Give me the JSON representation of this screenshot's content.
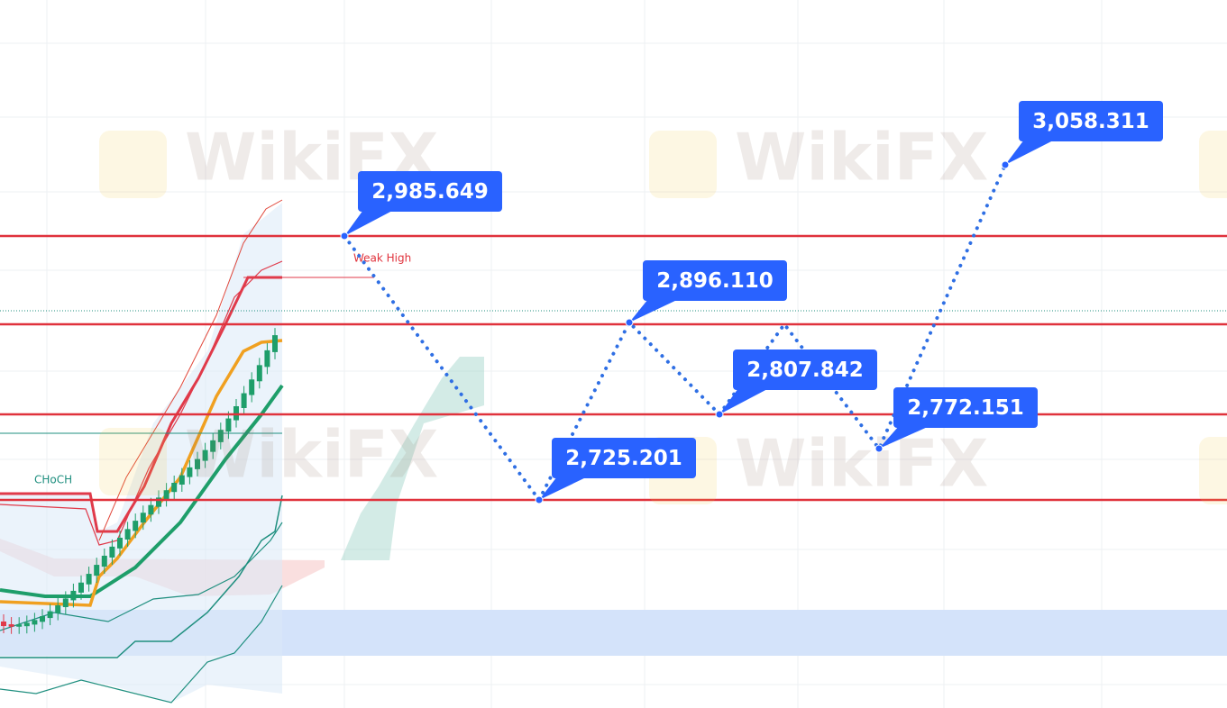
{
  "callouts": [
    "2,985.649",
    "2,725.201",
    "2,896.110",
    "2,807.842",
    "2,772.151",
    "3,058.311"
  ],
  "annotations": {
    "weak_high": "Weak High",
    "choch": "CHoCH"
  },
  "watermark": "WikiFX"
}
